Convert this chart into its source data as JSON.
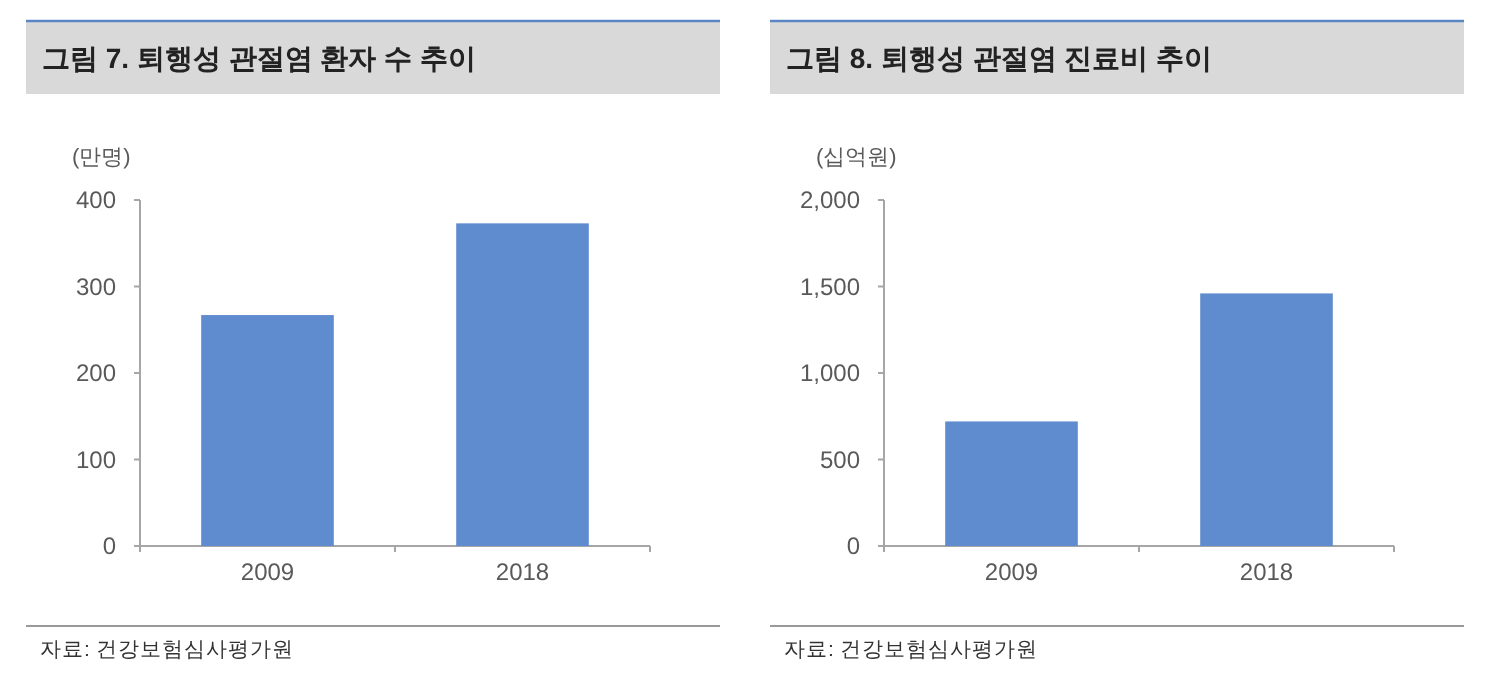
{
  "chart_data": [
    {
      "type": "bar",
      "title": "그림 7. 퇴행성 관절염 환자 수 추이",
      "ylabel": "(만명)",
      "categories": [
        "2009",
        "2018"
      ],
      "values": [
        267,
        373
      ],
      "color": "#5f8bcf",
      "ylim": [
        0,
        400
      ],
      "yticks": [
        0,
        100,
        200,
        300,
        400
      ],
      "annotations": [
        "자료: 건강보험심사평가원"
      ]
    },
    {
      "type": "bar",
      "title": "그림 8. 퇴행성 관절염 진료비 추이",
      "ylabel": "(십억원)",
      "categories": [
        "2009",
        "2018"
      ],
      "values": [
        720,
        1460
      ],
      "color": "#5f8bcf",
      "ylim": [
        0,
        2000
      ],
      "yticks": [
        {
          "value": 0,
          "label": "0"
        },
        {
          "value": 500,
          "label": "500"
        },
        {
          "value": 1000,
          "label": "1,000"
        },
        {
          "value": 1500,
          "label": "1,500"
        },
        {
          "value": 2000,
          "label": "2,000"
        }
      ],
      "annotations": [
        "자료: 건강보험심사평가원"
      ]
    }
  ]
}
